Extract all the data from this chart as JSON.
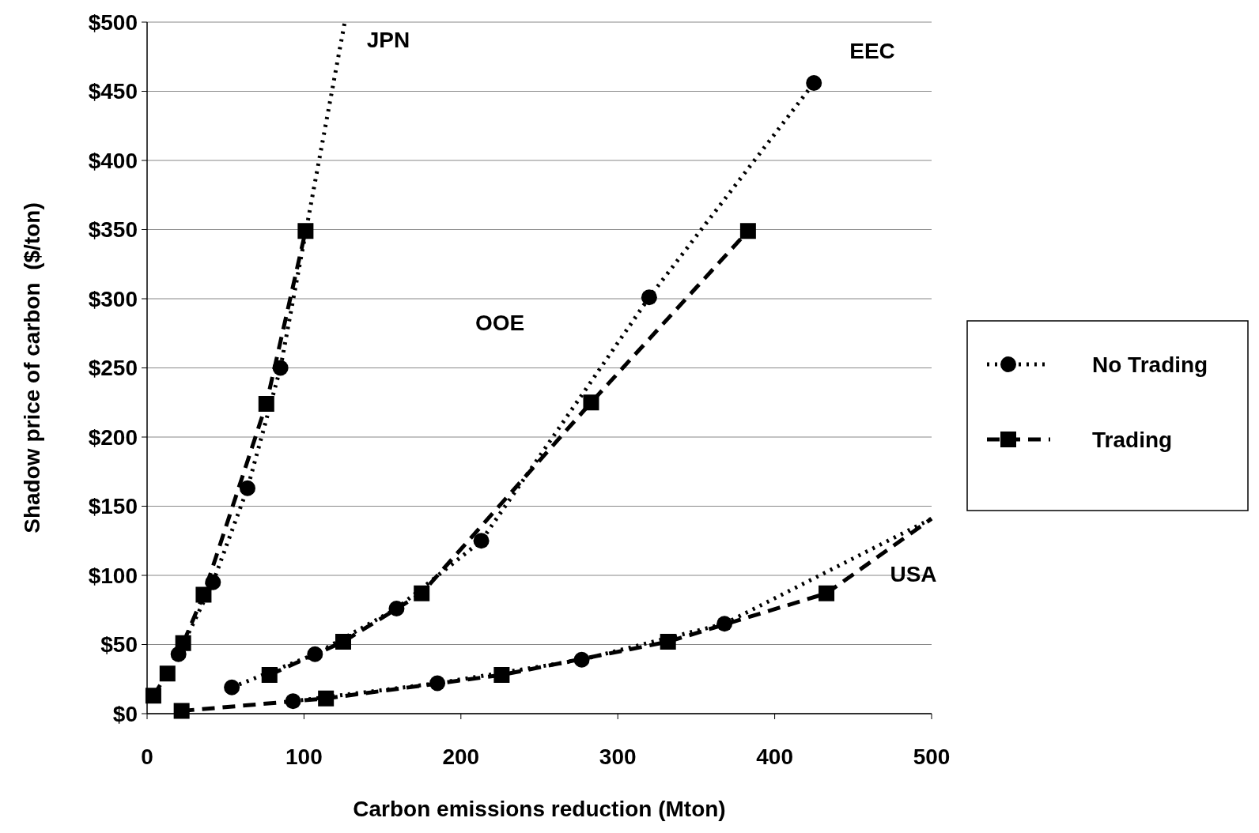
{
  "chart_data": {
    "type": "line",
    "xlabel": "Carbon emissions reduction (Mton)",
    "ylabel": "Shadow price of carbon  ($/ton)",
    "xlim": [
      0,
      500
    ],
    "xticks": [
      0,
      100,
      200,
      300,
      400,
      500
    ],
    "ylim": [
      0,
      500
    ],
    "yticks": [
      {
        "value": 0,
        "label": "$0"
      },
      {
        "value": 50,
        "label": "$50"
      },
      {
        "value": 100,
        "label": "$100"
      },
      {
        "value": 150,
        "label": "$150"
      },
      {
        "value": 200,
        "label": "$200"
      },
      {
        "value": 250,
        "label": "$250"
      },
      {
        "value": 300,
        "label": "$300"
      },
      {
        "value": 350,
        "label": "$350"
      },
      {
        "value": 400,
        "label": "$400"
      },
      {
        "value": 450,
        "label": "$450"
      },
      {
        "value": 500,
        "label": "$500"
      }
    ],
    "grid": "y",
    "legend": "right",
    "series": [
      {
        "name": "No Trading",
        "color": "#000000",
        "marker": "circle",
        "line_style": "dotted",
        "x": [
          20,
          42,
          64,
          85
        ],
        "values": [
          43,
          95,
          163,
          250
        ]
      },
      {
        "color": "#000000",
        "marker": "none",
        "line_style": "dotted",
        "x": [
          85,
          126
        ],
        "values": [
          250,
          500
        ]
      },
      {
        "name": "Trading",
        "color": "#000000",
        "marker": "square",
        "line_style": "dashed",
        "x": [
          4,
          13,
          23,
          36,
          76,
          101
        ],
        "values": [
          13,
          29,
          51,
          86,
          224,
          349
        ]
      },
      {
        "color": "#000000",
        "marker": "circle",
        "line_style": "dotted",
        "x": [
          54,
          107,
          159,
          213,
          320,
          425
        ],
        "values": [
          19,
          43,
          76,
          125,
          301,
          456
        ]
      },
      {
        "color": "#000000",
        "marker": "square",
        "line_style": "dashed",
        "x": [
          78,
          125,
          175,
          283,
          383
        ],
        "values": [
          28,
          52,
          87,
          225,
          349
        ]
      },
      {
        "color": "#000000",
        "marker": "circle",
        "line_style": "dotted",
        "x": [
          93,
          185,
          277,
          368
        ],
        "values": [
          9,
          22,
          39,
          65
        ]
      },
      {
        "color": "#000000",
        "marker": "none",
        "line_style": "dotted",
        "x": [
          368,
          500
        ],
        "values": [
          65,
          141
        ]
      },
      {
        "color": "#000000",
        "marker": "square",
        "line_style": "dashed",
        "x": [
          22,
          114,
          226,
          332,
          433
        ],
        "values": [
          2,
          11,
          28,
          52,
          87
        ]
      },
      {
        "color": "#000000",
        "marker": "none",
        "line_style": "dashed",
        "x": [
          433,
          500
        ],
        "values": [
          87,
          141
        ]
      }
    ],
    "annotations": [
      "JPN",
      "EEC",
      "OOE",
      "USA"
    ]
  }
}
